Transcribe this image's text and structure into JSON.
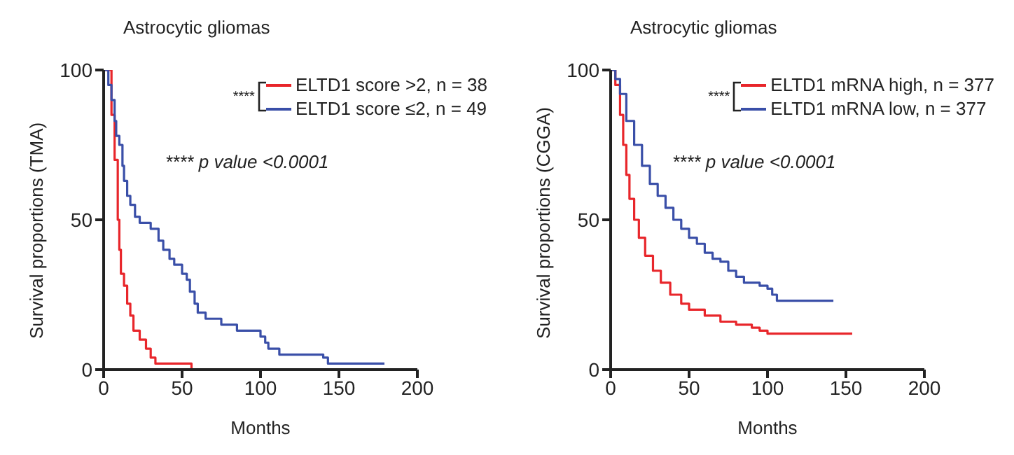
{
  "chart_data": [
    {
      "type": "step",
      "title": "Astrocytic gliomas",
      "xlabel": "Months",
      "ylabel": "Survival proportions (TMA)",
      "xlim": [
        0,
        200
      ],
      "xticks": [
        0,
        50,
        100,
        150,
        200
      ],
      "ylim": [
        0,
        100
      ],
      "yticks": [
        0,
        50,
        100
      ],
      "legend": "top right",
      "marker": "none",
      "annotations": [
        "****",
        "**** p value <0.0001"
      ],
      "series": [
        {
          "name": "ELTD1 score >2, n = 38",
          "color": "#e8262b",
          "x": [
            0,
            3,
            5,
            7,
            9,
            10,
            11,
            13,
            15,
            17,
            19,
            23,
            27,
            30,
            33,
            42,
            56
          ],
          "values": [
            100,
            100,
            85,
            70,
            50,
            40,
            32,
            28,
            22,
            18,
            13,
            10,
            7,
            4,
            2,
            2,
            0
          ]
        },
        {
          "name": "ELTD1 score ≤2, n = 49",
          "color": "#3a4fa8",
          "x": [
            0,
            3,
            5,
            7,
            8,
            10,
            12,
            13,
            15,
            17,
            20,
            23,
            30,
            35,
            38,
            42,
            45,
            50,
            53,
            55,
            58,
            60,
            65,
            75,
            85,
            100,
            103,
            105,
            112,
            140,
            143,
            179
          ],
          "values": [
            100,
            95,
            90,
            83,
            78,
            75,
            68,
            63,
            58,
            55,
            51,
            49,
            47,
            43,
            40,
            37,
            35,
            32,
            30,
            26,
            22,
            19,
            17,
            15,
            13,
            11,
            9,
            7,
            5,
            4,
            2,
            2
          ]
        }
      ]
    },
    {
      "type": "step",
      "title": "Astrocytic gliomas",
      "xlabel": "Months",
      "ylabel": "Survival proportions (CGGA)",
      "xlim": [
        0,
        200
      ],
      "xticks": [
        0,
        50,
        100,
        150,
        200
      ],
      "ylim": [
        0,
        100
      ],
      "yticks": [
        0,
        50,
        100
      ],
      "legend": "top right",
      "marker": "none",
      "annotations": [
        "****",
        "**** p value <0.0001"
      ],
      "series": [
        {
          "name": "ELTD1 mRNA high, n = 377",
          "color": "#e8262b",
          "x": [
            0,
            3,
            6,
            8,
            10,
            12,
            15,
            18,
            22,
            27,
            32,
            38,
            45,
            50,
            60,
            70,
            80,
            90,
            95,
            100,
            154
          ],
          "values": [
            100,
            95,
            85,
            75,
            65,
            57,
            50,
            44,
            38,
            33,
            29,
            25,
            22,
            20,
            18,
            16,
            15,
            14,
            13,
            12,
            12
          ]
        },
        {
          "name": "ELTD1 mRNA low, n = 377",
          "color": "#3a4fa8",
          "x": [
            0,
            3,
            6,
            10,
            15,
            20,
            25,
            30,
            35,
            40,
            45,
            50,
            55,
            60,
            65,
            70,
            75,
            80,
            85,
            95,
            100,
            103,
            106,
            142
          ],
          "values": [
            100,
            97,
            92,
            83,
            75,
            68,
            62,
            58,
            54,
            50,
            47,
            44,
            42,
            39,
            37,
            36,
            33,
            31,
            29,
            28,
            27,
            25,
            23,
            23
          ]
        }
      ]
    }
  ]
}
